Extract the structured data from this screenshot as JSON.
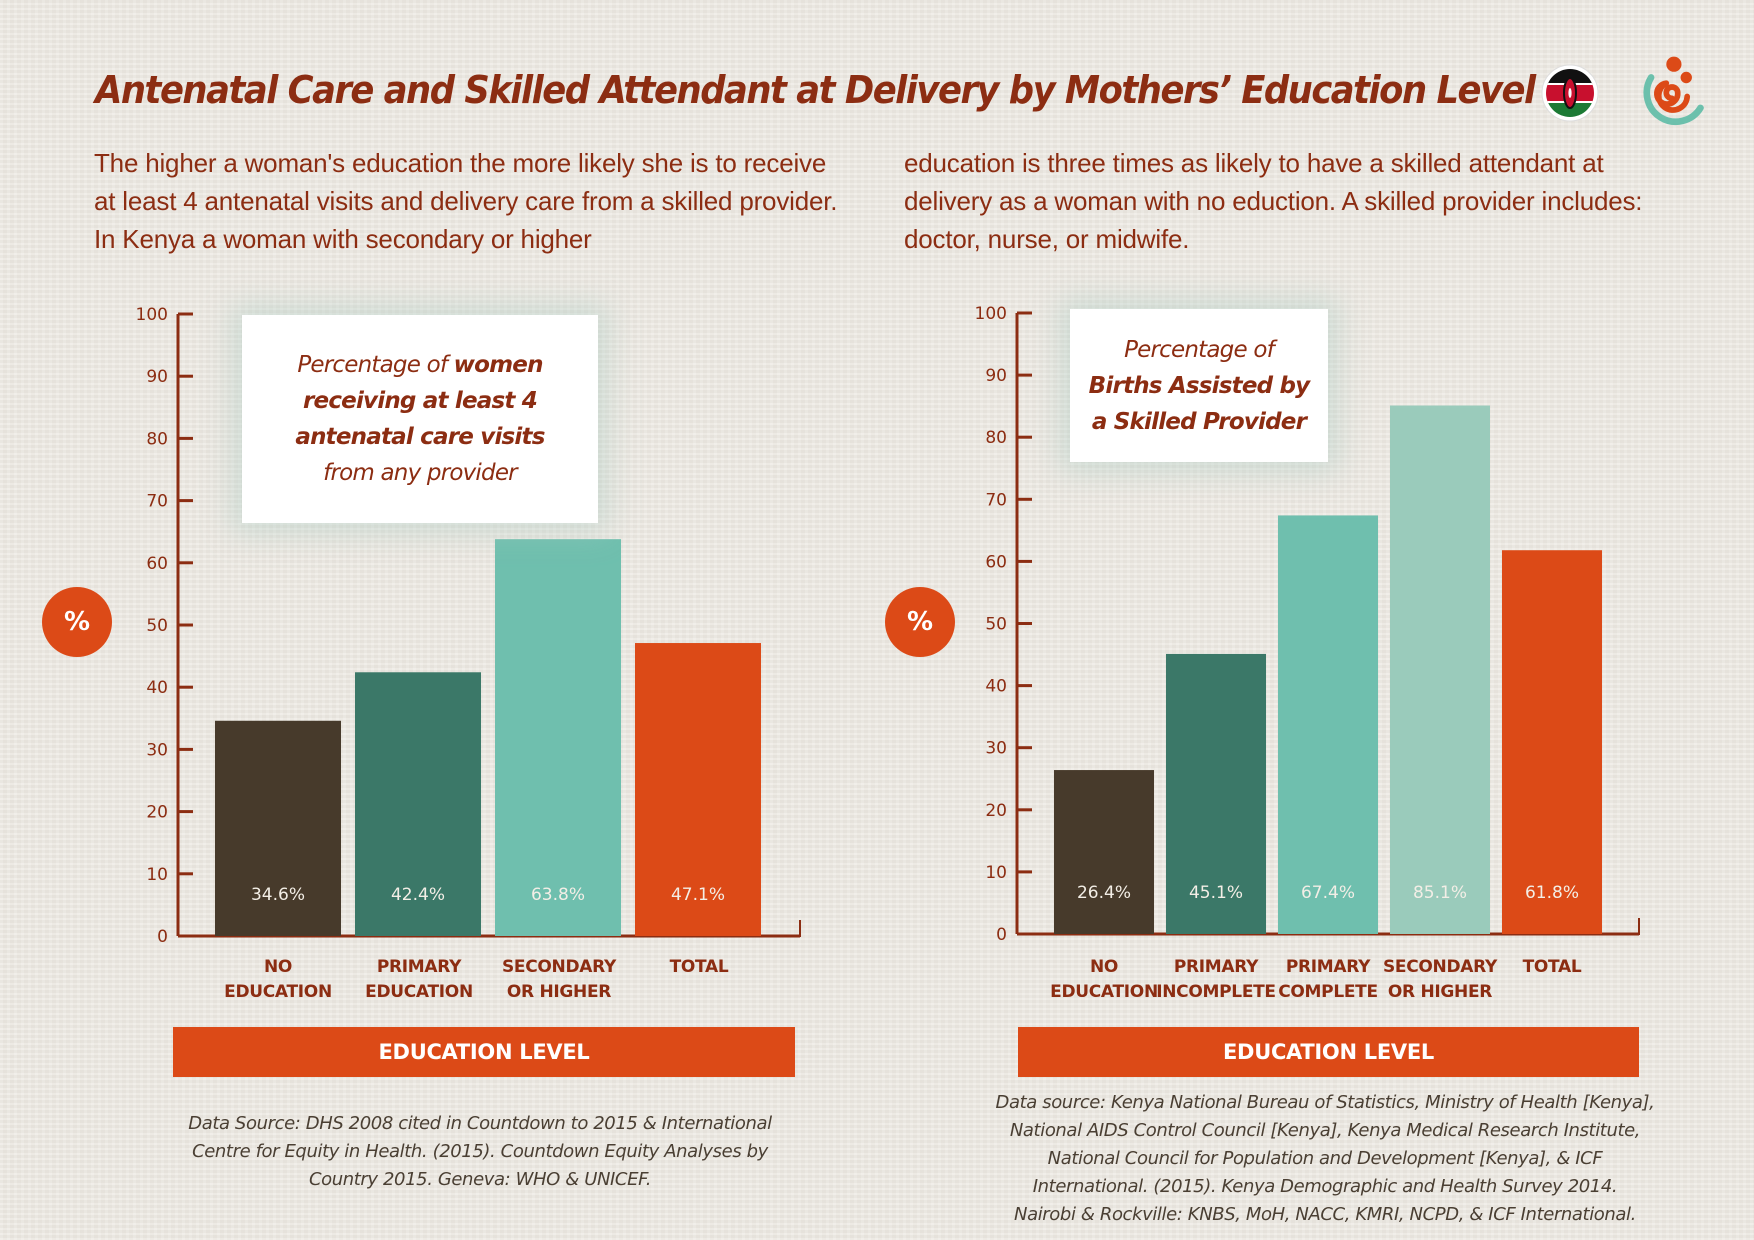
{
  "header": {
    "title": "Antenatal Care and Skilled Attendant at Delivery by Mothers’ Education Level",
    "intro_left": "The higher a woman's education the more likely she is to receive at least 4 antenatal visits and delivery care from a skilled provider. In Kenya a woman with secondary or higher",
    "intro_right": "education is three times as likely to have a skilled attendant at delivery as a woman with no eduction. A skilled provider includes: doctor, nurse, or midwife.",
    "icons": [
      "kenya-flag-icon",
      "maternal-health-logo-icon"
    ]
  },
  "colors": {
    "title": "#8c2d12",
    "accent": "#dc4a17",
    "dark_brown": "#473a2b",
    "dark_teal": "#3b7868",
    "teal": "#6fbfae",
    "light_teal": "#9acbbb",
    "background": "#ece8e1"
  },
  "charts": {
    "left": {
      "label_normal_1": "Percentage of ",
      "label_bold_1": "women",
      "label_bold_2": "receiving at least 4",
      "label_bold_3": "antenatal care visits",
      "label_normal_2": "from any provider",
      "unit_badge": "%",
      "axis_title": "EDUCATION LEVEL",
      "source": "Data Source: DHS 2008 cited in Countdown to 2015 & International\nCentre for Equity in Health. (2015). Countdown Equity Analyses by\nCountry 2015. Geneva: WHO & UNICEF.",
      "xlabels": [
        "NO\nEDUCATION",
        "PRIMARY\nEDUCATION",
        "SECONDARY\nOR HIGHER",
        "TOTAL"
      ]
    },
    "right": {
      "label_normal_1": "Percentage of",
      "label_bold_1": "Births Assisted by",
      "label_bold_2": "a Skilled Provider",
      "unit_badge": "%",
      "axis_title": "EDUCATION LEVEL",
      "source": "Data source: Kenya National Bureau of Statistics, Ministry of Health [Kenya],\nNational AIDS Control Council [Kenya], Kenya Medical Research Institute,\nNational Council for Population and Development [Kenya], & ICF\nInternational. (2015). Kenya Demographic and Health Survey 2014.\nNairobi & Rockville: KNBS, MoH, NACC, KMRI, NCPD, & ICF International.",
      "xlabels": [
        "NO\nEDUCATION",
        "PRIMARY\nINCOMPLETE",
        "PRIMARY\nCOMPLETE",
        "SECONDARY\nOR HIGHER",
        "TOTAL"
      ]
    }
  },
  "chart_data": [
    {
      "type": "bar",
      "title": "Percentage of women receiving at least 4 antenatal care visits from any provider",
      "xlabel": "EDUCATION LEVEL",
      "ylabel": "%",
      "ylim": [
        0,
        100
      ],
      "yticks": [
        0,
        10,
        20,
        30,
        40,
        50,
        60,
        70,
        80,
        90,
        100
      ],
      "grid": false,
      "categories": [
        "NO EDUCATION",
        "PRIMARY EDUCATION",
        "SECONDARY OR HIGHER",
        "TOTAL"
      ],
      "values": [
        34.6,
        42.4,
        63.8,
        47.1
      ],
      "data_labels": [
        "34.6%",
        "42.4%",
        "63.8%",
        "47.1%"
      ],
      "bar_colors": [
        "#473a2b",
        "#3b7868",
        "#6fbfae",
        "#dc4a17"
      ]
    },
    {
      "type": "bar",
      "title": "Percentage of Births Assisted by a Skilled Provider",
      "xlabel": "EDUCATION LEVEL",
      "ylabel": "%",
      "ylim": [
        0,
        100
      ],
      "yticks": [
        0,
        10,
        20,
        30,
        40,
        50,
        60,
        70,
        80,
        90,
        100
      ],
      "grid": false,
      "categories": [
        "NO EDUCATION",
        "PRIMARY INCOMPLETE",
        "PRIMARY COMPLETE",
        "SECONDARY OR HIGHER",
        "TOTAL"
      ],
      "values": [
        26.4,
        45.1,
        67.4,
        85.1,
        61.8
      ],
      "data_labels": [
        "26.4%",
        "45.1%",
        "67.4%",
        "85.1%",
        "61.8%"
      ],
      "bar_colors": [
        "#473a2b",
        "#3b7868",
        "#6fbfae",
        "#9acbbb",
        "#dc4a17"
      ]
    }
  ]
}
